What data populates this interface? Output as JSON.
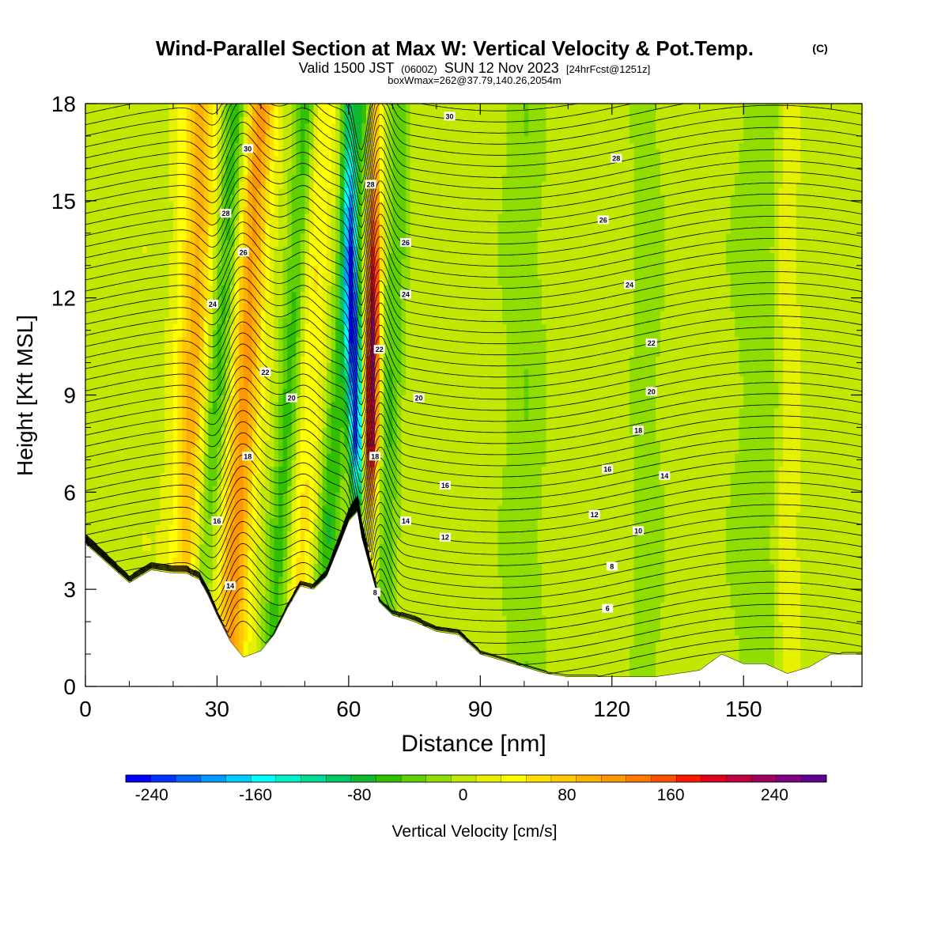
{
  "chart_data": {
    "type": "heatmap",
    "title": "Wind-Parallel Section at Max W: Vertical Velocity & Pot.Temp.",
    "title_mark": "(C)",
    "subtitle": {
      "part1": "Valid 1500 JST",
      "part2": "(0600Z)",
      "part3": "SUN 12 Nov 2023",
      "part4": "[24hrFcst@1251z]"
    },
    "subtitle2": "boxWmax=262@37.79,140.26,2054m",
    "xlabel": "Distance [nm]",
    "ylabel": "Height [Kft MSL]",
    "xlim": [
      0,
      177
    ],
    "ylim": [
      0,
      18
    ],
    "x_ticks": [
      "0",
      "30",
      "60",
      "90",
      "120",
      "150"
    ],
    "x_tick_values": [
      0,
      30,
      60,
      90,
      120,
      150
    ],
    "y_ticks": [
      "0",
      "3",
      "6",
      "9",
      "12",
      "15",
      "18"
    ],
    "y_tick_values": [
      0,
      3,
      6,
      9,
      12,
      15,
      18
    ],
    "terrain": [
      [
        0,
        4.4
      ],
      [
        10,
        3.2
      ],
      [
        15,
        3.6
      ],
      [
        20,
        3.5
      ],
      [
        23,
        3.5
      ],
      [
        26,
        3.3
      ],
      [
        28,
        2.8
      ],
      [
        30,
        2.2
      ],
      [
        33,
        1.4
      ],
      [
        36,
        0.9
      ],
      [
        40,
        1.1
      ],
      [
        43,
        1.6
      ],
      [
        46,
        2.4
      ],
      [
        49,
        3.1
      ],
      [
        52,
        3.0
      ],
      [
        55,
        3.4
      ],
      [
        58,
        4.4
      ],
      [
        60,
        5.1
      ],
      [
        62,
        5.4
      ],
      [
        63,
        4.6
      ],
      [
        65,
        3.6
      ],
      [
        67,
        2.6
      ],
      [
        70,
        2.2
      ],
      [
        75,
        2.0
      ],
      [
        80,
        1.7
      ],
      [
        85,
        1.6
      ],
      [
        90,
        1.0
      ],
      [
        95,
        0.8
      ],
      [
        100,
        0.6
      ],
      [
        105,
        0.4
      ],
      [
        110,
        0.3
      ],
      [
        115,
        0.3
      ],
      [
        120,
        0.3
      ],
      [
        125,
        0.3
      ],
      [
        130,
        0.3
      ],
      [
        135,
        0.4
      ],
      [
        140,
        0.5
      ],
      [
        145,
        1.0
      ],
      [
        150,
        0.7
      ],
      [
        155,
        0.7
      ],
      [
        160,
        0.4
      ],
      [
        165,
        0.6
      ],
      [
        170,
        1.0
      ],
      [
        175,
        1.0
      ],
      [
        177,
        1.0
      ]
    ],
    "w_features": [
      {
        "x": 28,
        "w": -70,
        "tilt": 0.55,
        "width": 3.0
      },
      {
        "x": 35,
        "w": 110,
        "tilt": 0.4,
        "width": 3.5
      },
      {
        "x": 24,
        "w": 90,
        "tilt": 0.2,
        "width": 4.0
      },
      {
        "x": 45,
        "w": -60,
        "tilt": 0.45,
        "width": 2.5
      },
      {
        "x": 50,
        "w": 45,
        "tilt": 0.35,
        "width": 3.0
      },
      {
        "x": 56,
        "w": -70,
        "tilt": 0.55,
        "width": 2.5
      },
      {
        "x": 62,
        "w": -240,
        "tilt": -0.2,
        "width": 1.6
      },
      {
        "x": 65,
        "w": 230,
        "tilt": 0.1,
        "width": 1.6
      },
      {
        "x": 69,
        "w": -50,
        "tilt": 0.25,
        "width": 2.5
      },
      {
        "x": 100,
        "w": -30,
        "tilt": 0.0,
        "width": 5.0
      },
      {
        "x": 128,
        "w": -25,
        "tilt": 0.0,
        "width": 4.0
      },
      {
        "x": 155,
        "w": -30,
        "tilt": 0.05,
        "width": 8.0
      },
      {
        "x": 160,
        "w": 40,
        "tilt": 0.0,
        "width": 3.0
      }
    ],
    "theta_levels": [
      6,
      8,
      10,
      12,
      14,
      16,
      18,
      20,
      22,
      24,
      26,
      28,
      30
    ],
    "theta_labels": [
      {
        "text": "30",
        "x": 37,
        "y": 16.6
      },
      {
        "text": "28",
        "x": 32,
        "y": 14.6
      },
      {
        "text": "26",
        "x": 36,
        "y": 13.4
      },
      {
        "text": "24",
        "x": 29,
        "y": 11.8
      },
      {
        "text": "22",
        "x": 41,
        "y": 9.7
      },
      {
        "text": "20",
        "x": 47,
        "y": 8.9
      },
      {
        "text": "18",
        "x": 37,
        "y": 7.1
      },
      {
        "text": "16",
        "x": 30,
        "y": 5.1
      },
      {
        "text": "14",
        "x": 33,
        "y": 3.1
      },
      {
        "text": "28",
        "x": 65,
        "y": 15.5
      },
      {
        "text": "26",
        "x": 73,
        "y": 13.7
      },
      {
        "text": "24",
        "x": 73,
        "y": 12.1
      },
      {
        "text": "22",
        "x": 67,
        "y": 10.4
      },
      {
        "text": "20",
        "x": 76,
        "y": 8.9
      },
      {
        "text": "18",
        "x": 66,
        "y": 7.1
      },
      {
        "text": "16",
        "x": 82,
        "y": 6.2
      },
      {
        "text": "14",
        "x": 73,
        "y": 5.1
      },
      {
        "text": "12",
        "x": 82,
        "y": 4.6
      },
      {
        "text": "8",
        "x": 66,
        "y": 2.9
      },
      {
        "text": "30",
        "x": 83,
        "y": 17.6
      },
      {
        "text": "28",
        "x": 121,
        "y": 16.3
      },
      {
        "text": "26",
        "x": 118,
        "y": 14.4
      },
      {
        "text": "24",
        "x": 124,
        "y": 12.4
      },
      {
        "text": "22",
        "x": 129,
        "y": 10.6
      },
      {
        "text": "20",
        "x": 129,
        "y": 9.1
      },
      {
        "text": "18",
        "x": 126,
        "y": 7.9
      },
      {
        "text": "16",
        "x": 119,
        "y": 6.7
      },
      {
        "text": "14",
        "x": 132,
        "y": 6.5
      },
      {
        "text": "12",
        "x": 116,
        "y": 5.3
      },
      {
        "text": "10",
        "x": 126,
        "y": 4.8
      },
      {
        "text": "8",
        "x": 120,
        "y": 3.7
      },
      {
        "text": "6",
        "x": 119,
        "y": 2.4
      }
    ],
    "colorbar": {
      "label": "Vertical Velocity [cm/s]",
      "min": -260,
      "max": 280,
      "tick_labels": [
        "-240",
        "-160",
        "-80",
        "0",
        "80",
        "160",
        "240"
      ],
      "tick_values": [
        -240,
        -160,
        -80,
        0,
        80,
        160,
        240
      ],
      "colors": [
        "#0000ff",
        "#0033ff",
        "#0066ff",
        "#0099ff",
        "#00ccff",
        "#00ffff",
        "#00f0c8",
        "#00dc96",
        "#00c864",
        "#10b830",
        "#30c000",
        "#60d000",
        "#90dd00",
        "#c0e800",
        "#e6f000",
        "#ffff00",
        "#ffe000",
        "#ffc800",
        "#ffb000",
        "#ff9800",
        "#ff7800",
        "#ff5000",
        "#ff1800",
        "#e00020",
        "#c00040",
        "#a00060",
        "#800080",
        "#600090"
      ]
    }
  }
}
